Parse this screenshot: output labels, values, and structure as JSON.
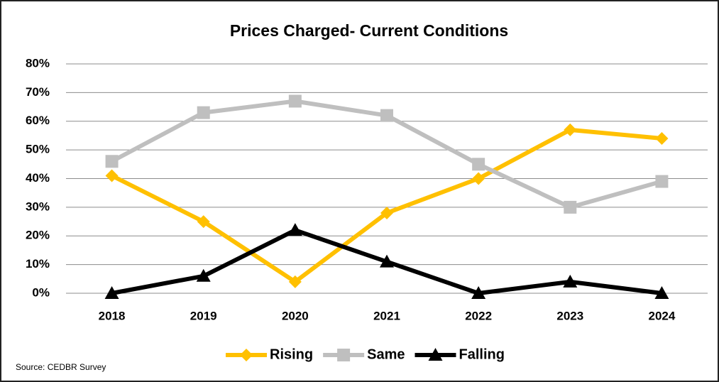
{
  "chart_data": {
    "type": "line",
    "title": "Prices Charged- Current Conditions",
    "categories": [
      "2018",
      "2019",
      "2020",
      "2021",
      "2022",
      "2023",
      "2024"
    ],
    "series": [
      {
        "name": "Rising",
        "color": "#ffc000",
        "marker": "diamond",
        "values": [
          41,
          25,
          4,
          28,
          40,
          57,
          54
        ]
      },
      {
        "name": "Same",
        "color": "#bfbfbf",
        "marker": "square",
        "values": [
          46,
          63,
          67,
          62,
          45,
          30,
          39
        ]
      },
      {
        "name": "Falling",
        "color": "#000000",
        "marker": "triangle",
        "values": [
          0,
          6,
          22,
          11,
          0,
          4,
          0
        ]
      }
    ],
    "ylim": [
      0,
      80
    ],
    "yticks": [
      {
        "value": 0,
        "label": "0%"
      },
      {
        "value": 10,
        "label": "10%"
      },
      {
        "value": 20,
        "label": "20%"
      },
      {
        "value": 30,
        "label": "30%"
      },
      {
        "value": 40,
        "label": "40%"
      },
      {
        "value": 50,
        "label": "50%"
      },
      {
        "value": 60,
        "label": "60%"
      },
      {
        "value": 70,
        "label": "70%"
      },
      {
        "value": 80,
        "label": "80%"
      }
    ],
    "grid": true,
    "legend": "bottom",
    "source": "Source: CEDBR Survey"
  }
}
